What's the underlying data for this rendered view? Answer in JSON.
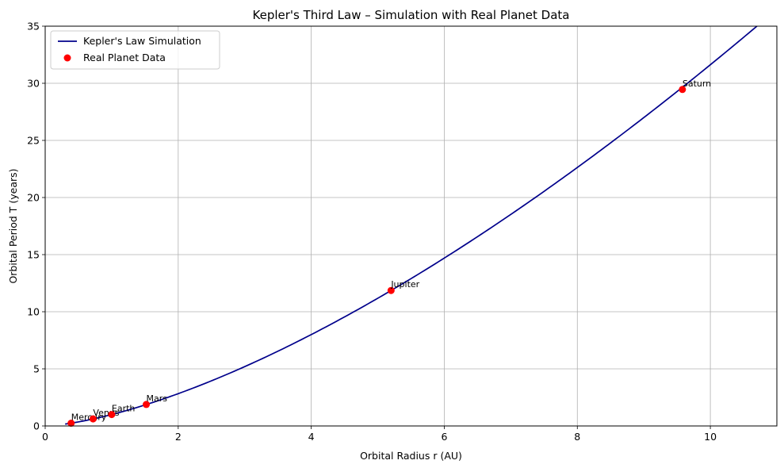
{
  "chart_data": {
    "type": "line",
    "title": "Kepler's Third Law – Simulation with Real Planet Data",
    "xlabel": "Orbital Radius r (AU)",
    "ylabel": "Orbital Period T (years)",
    "xlim": [
      0,
      11
    ],
    "ylim": [
      0,
      35
    ],
    "xticks": [
      0,
      2,
      4,
      6,
      8,
      10
    ],
    "yticks": [
      0,
      5,
      10,
      15,
      20,
      25,
      30,
      35
    ],
    "grid": true,
    "legend_position": "top-left",
    "simulation": {
      "name": "Kepler's Law Simulation",
      "formula": "T = r^1.5",
      "r_range": [
        0.3,
        10.9
      ],
      "color": "#00008b"
    },
    "planets": {
      "name": "Real Planet Data",
      "color": "#ff0000",
      "points": [
        {
          "label": "Mercury",
          "r": 0.39,
          "T": 0.24
        },
        {
          "label": "Venus",
          "r": 0.72,
          "T": 0.62
        },
        {
          "label": "Earth",
          "r": 1.0,
          "T": 1.0
        },
        {
          "label": "Mars",
          "r": 1.52,
          "T": 1.88
        },
        {
          "label": "Jupiter",
          "r": 5.2,
          "T": 11.86
        },
        {
          "label": "Saturn",
          "r": 9.58,
          "T": 29.46
        }
      ]
    }
  }
}
